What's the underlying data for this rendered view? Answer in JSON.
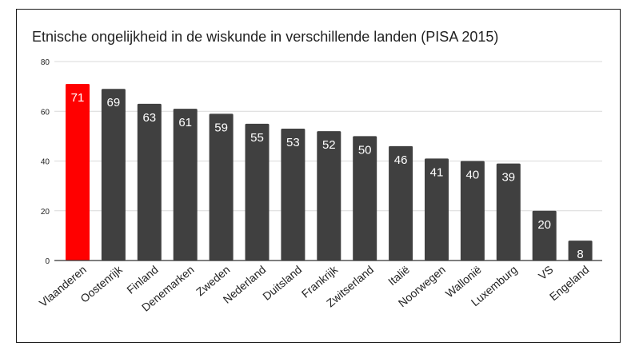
{
  "chart_data": {
    "type": "bar",
    "title": "Etnische ongelijkheid in de wiskunde in verschillende landen (PISA 2015)",
    "xlabel": "",
    "ylabel": "",
    "ylim": [
      0,
      80
    ],
    "yticks": [
      "0",
      "20",
      "40",
      "60",
      "80"
    ],
    "grid": true,
    "categories": [
      "Vlaanderen",
      "Oostenrijk",
      "Finland",
      "Denemarken",
      "Zweden",
      "Nederland",
      "Duitsland",
      "Frankrijk",
      "Zwitserland",
      "Italië",
      "Noorwegen",
      "Wallonië",
      "Luxemburg",
      "VS",
      "Engeland"
    ],
    "values": [
      71,
      69,
      63,
      61,
      59,
      55,
      53,
      52,
      50,
      46,
      41,
      40,
      39,
      20,
      8
    ],
    "data_labels": [
      "71",
      "69",
      "63",
      "61",
      "59",
      "55",
      "53",
      "52",
      "50",
      "46",
      "41",
      "40",
      "39",
      "20",
      "8"
    ],
    "colors": {
      "highlight": "#ff0000",
      "bar": "#404040",
      "grid": "#d9d9d9",
      "axis": "#333333",
      "label_text": "#ffffff",
      "tick_text": "#222222"
    },
    "highlight_index": 0
  }
}
